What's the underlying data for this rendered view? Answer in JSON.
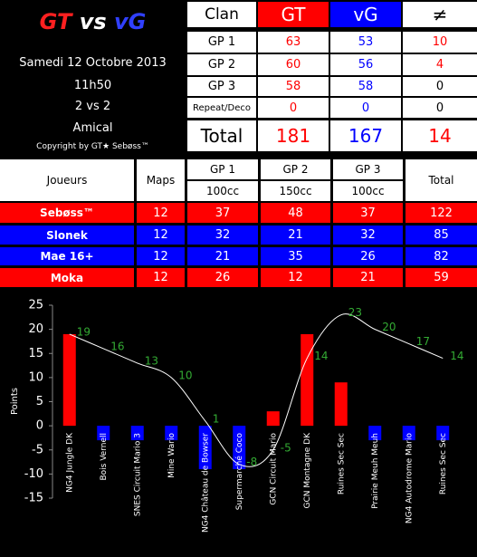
{
  "header": {
    "title_left": "GT",
    "title_mid": "vs",
    "title_right": "vG",
    "date": "Samedi 12 Octobre 2013",
    "time": "11h50",
    "format": "2 vs 2",
    "mode": "Amical",
    "copyright": "Copyright by GT★ Sebøss™"
  },
  "clan_table": {
    "columns": [
      "Clan",
      "GT",
      "vG",
      "≠"
    ],
    "rows": [
      [
        "GP 1",
        63,
        53,
        10
      ],
      [
        "GP 2",
        60,
        56,
        4
      ],
      [
        "GP 3",
        58,
        58,
        0
      ],
      [
        "Repeat/Deco",
        0,
        0,
        0
      ],
      [
        "Total",
        181,
        167,
        14
      ]
    ]
  },
  "players_table": {
    "columns": [
      "Joueurs",
      "Maps",
      "GP 1",
      "GP 2",
      "GP 3",
      "Total"
    ],
    "engines": [
      "100cc",
      "150cc",
      "100cc"
    ],
    "rows": [
      {
        "name": "Sebøss™",
        "color": "#ff0000",
        "values": [
          12,
          37,
          48,
          37,
          122
        ]
      },
      {
        "name": "Slonek",
        "color": "#0000ff",
        "values": [
          12,
          32,
          21,
          32,
          85
        ]
      },
      {
        "name": "Mae 16+",
        "color": "#0000ff",
        "values": [
          12,
          21,
          35,
          26,
          82
        ]
      },
      {
        "name": "Moka",
        "color": "#ff0000",
        "values": [
          12,
          26,
          12,
          21,
          59
        ]
      }
    ]
  },
  "chart_data": {
    "type": "combo",
    "y_label": "Points",
    "categories": [
      "NG4 Jungle DK",
      "Bois Vernell",
      "SNES Circuit Mario 3",
      "Mine Wario",
      "NG4 Château de Bowser",
      "Supermarché Coco",
      "GCN Circuit Mario",
      "GCN Montagne DK",
      "Ruines Sec Sec",
      "Prairie Meuh Meuh",
      "NG4 Autodrome Mario",
      "Ruines Sec Sec"
    ],
    "series": [
      {
        "type": "bar",
        "positive_color": "#ff0000",
        "negative_color": "#0000ff",
        "values": [
          19,
          -3,
          -3,
          -3,
          -9,
          -9,
          3,
          19,
          9,
          -3,
          -3,
          -3
        ]
      },
      {
        "type": "line",
        "color": "#ffffff",
        "label_color": "#33aa33",
        "values": [
          19,
          16,
          13,
          10,
          1,
          -8,
          -5,
          14,
          23,
          20,
          17,
          14
        ]
      }
    ],
    "ylim": [
      -15,
      25
    ],
    "yticks": [
      -15,
      -10,
      -5,
      0,
      5,
      10,
      15,
      20,
      25
    ]
  }
}
